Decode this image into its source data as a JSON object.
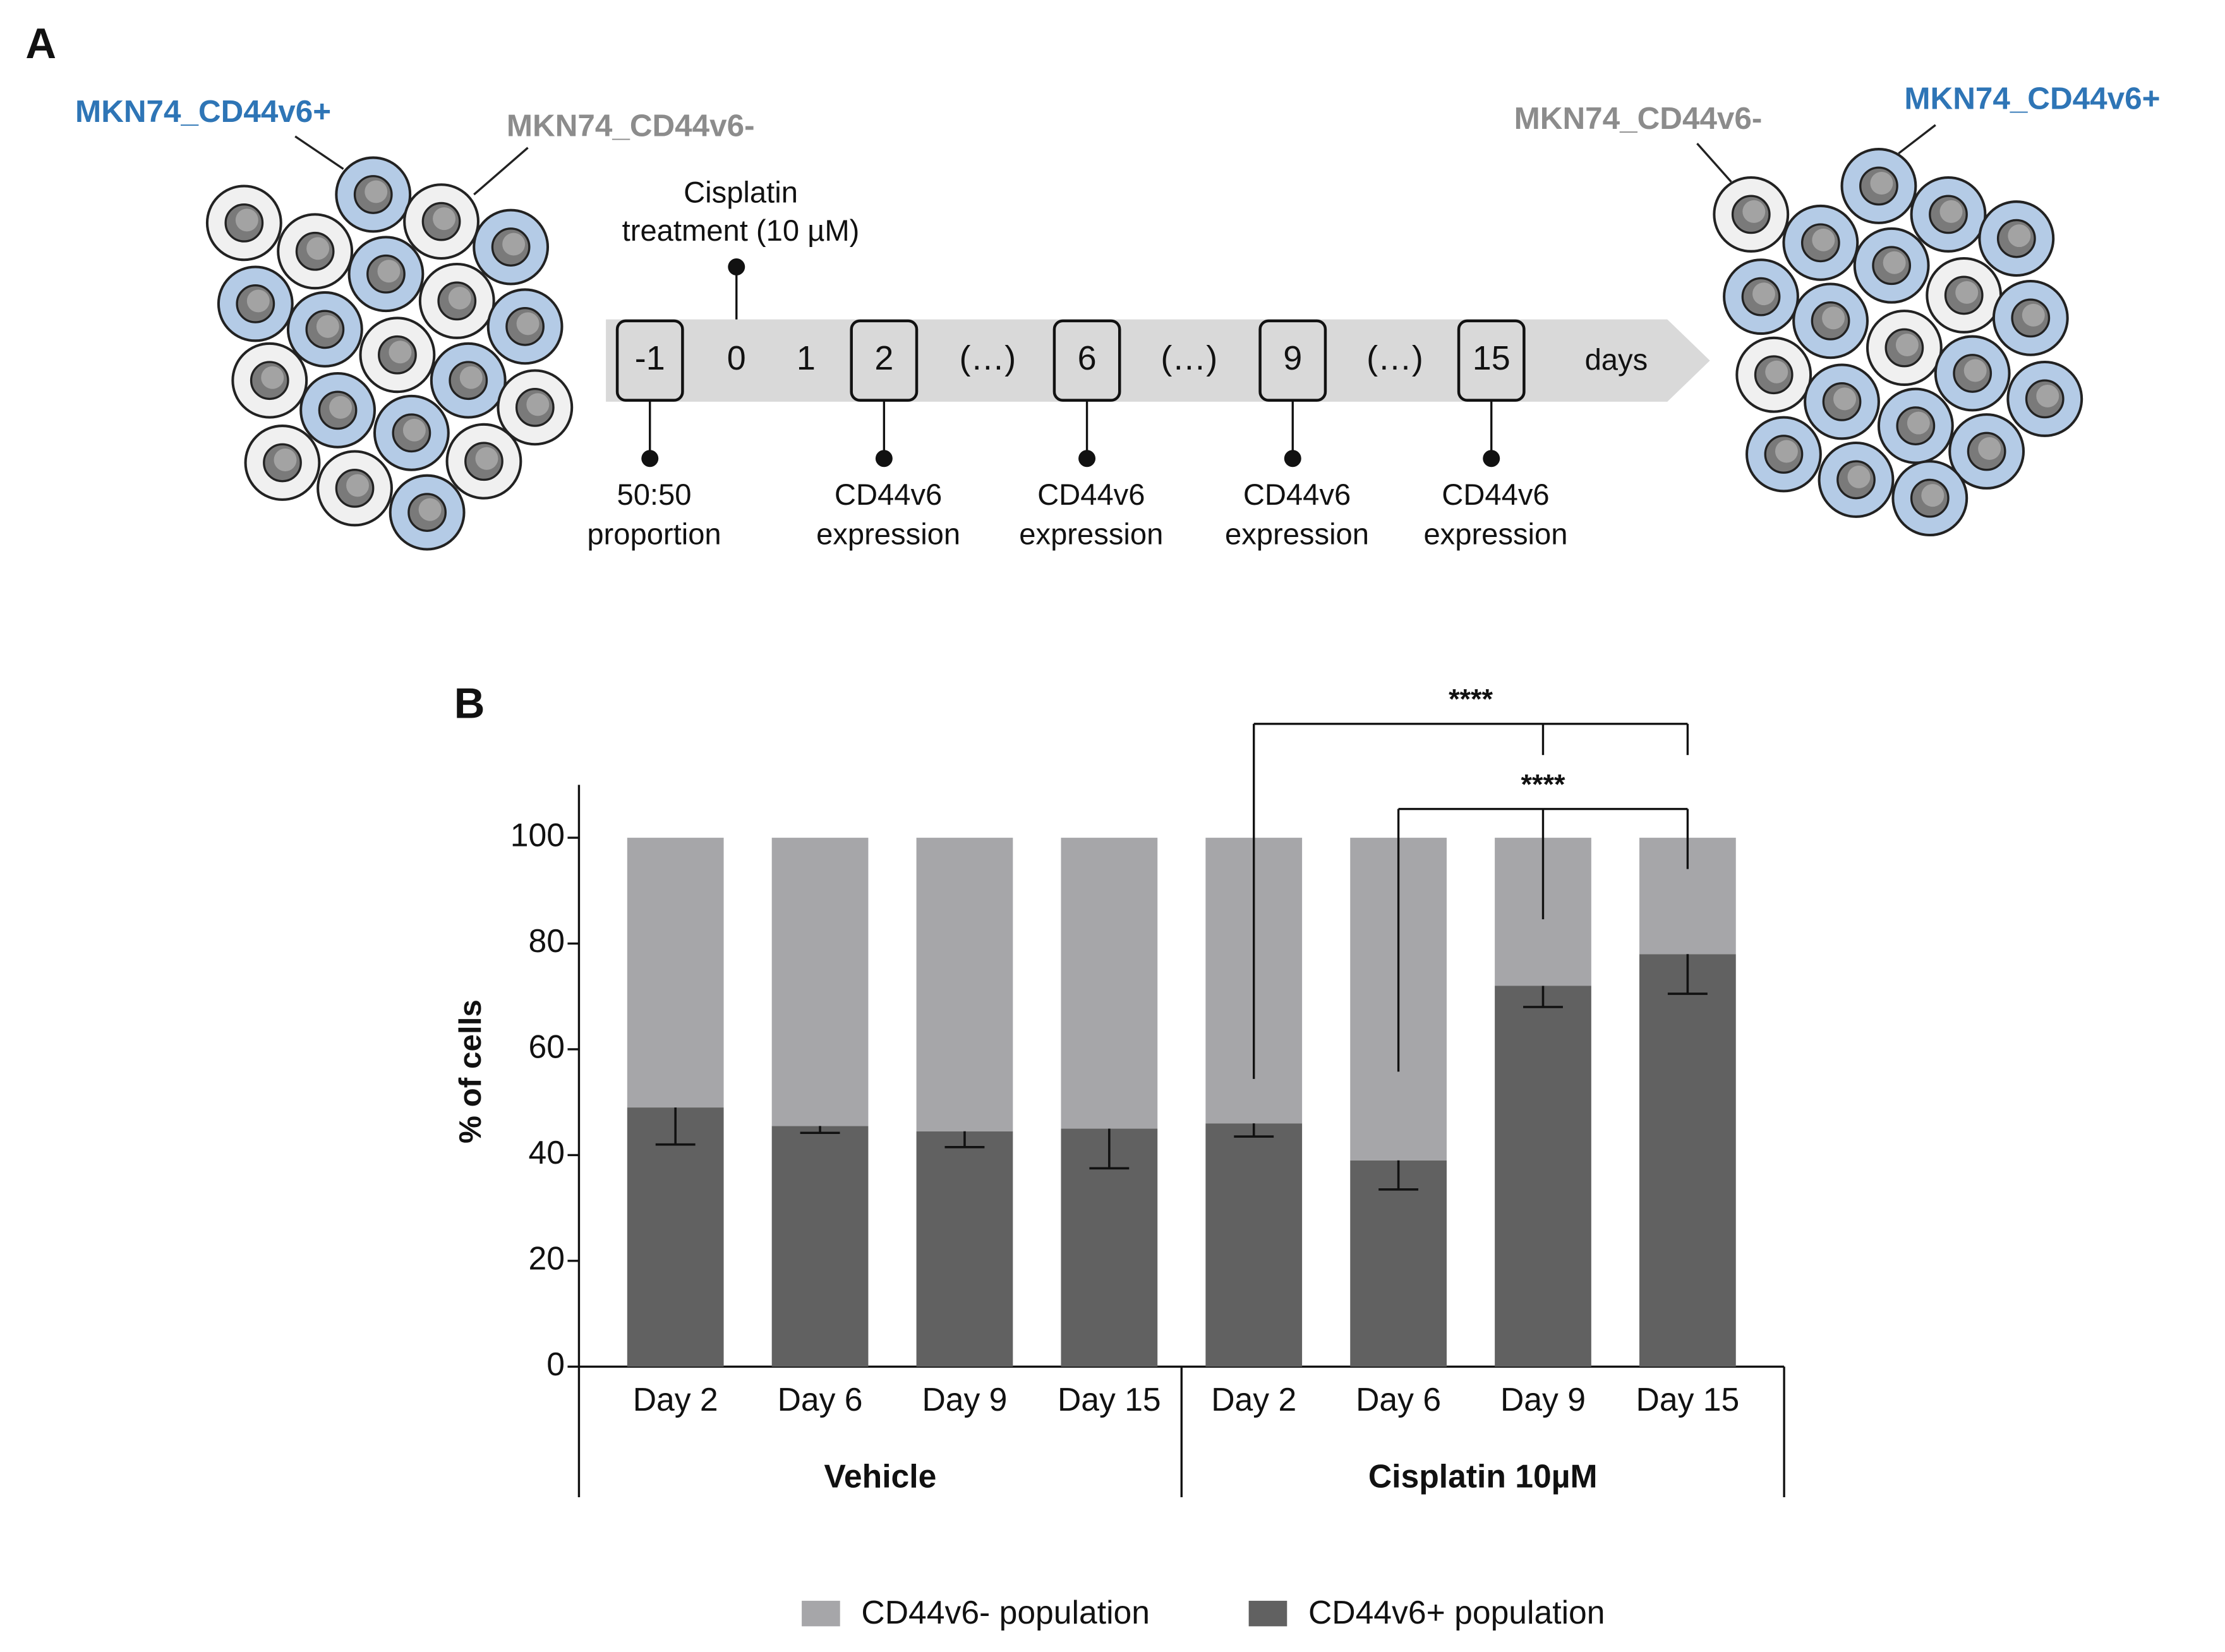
{
  "diagram": {
    "label": "A",
    "left": {
      "positive": "MKN74_CD44v6+",
      "negative": "MKN74_CD44v6-"
    },
    "right": {
      "negative": "MKN74_CD44v6-",
      "positive": "MKN74_CD44v6+"
    },
    "timeline": [
      {
        "text": "-1",
        "boxed": true,
        "note": [
          "50:50",
          "proportion"
        ]
      },
      {
        "text": "0",
        "above": [
          "Cisplatin",
          "treatment (10 µM)"
        ]
      },
      {
        "text": "1"
      },
      {
        "text": "2",
        "boxed": true,
        "note": [
          "CD44v6",
          "expression"
        ]
      },
      {
        "text": "(…)"
      },
      {
        "text": "6",
        "boxed": true,
        "note": [
          "CD44v6",
          "expression"
        ]
      },
      {
        "text": "(…)"
      },
      {
        "text": "9",
        "boxed": true,
        "note": [
          "CD44v6",
          "expression"
        ]
      },
      {
        "text": "(…)"
      },
      {
        "text": "15",
        "boxed": true,
        "note": [
          "CD44v6",
          "expression"
        ]
      }
    ],
    "unit": "days"
  },
  "chart_data": {
    "type": "bar",
    "stacked": true,
    "panel": "B",
    "ylabel": "% of cells",
    "categories": [
      "Day 2",
      "Day 6",
      "Day 9",
      "Day 15",
      "Day 2",
      "Day 6",
      "Day 9",
      "Day 15"
    ],
    "groups": [
      {
        "name": "Vehicle",
        "span": 4
      },
      {
        "name": "Cisplatin 10µM",
        "span": 4
      }
    ],
    "series": [
      {
        "name": "CD44v6- population",
        "color": "#a6a6a9",
        "values": [
          51,
          54.5,
          55.5,
          55,
          54,
          61,
          28,
          22
        ]
      },
      {
        "name": "CD44v6+ population",
        "color": "#616161",
        "values": [
          49,
          45.5,
          44.5,
          45,
          46,
          39,
          72,
          78
        ],
        "errors": [
          7,
          1.3,
          3,
          7.5,
          2.5,
          5.5,
          4,
          7.5
        ]
      }
    ],
    "ylim": [
      0,
      110
    ],
    "yticks": [
      0,
      20,
      40,
      60,
      80,
      100
    ],
    "significance": [
      {
        "label": "****",
        "from": 4,
        "to": [
          6,
          7
        ]
      },
      {
        "label": "****",
        "from": 5,
        "to": [
          6,
          7
        ]
      }
    ],
    "legend": "bottom"
  }
}
